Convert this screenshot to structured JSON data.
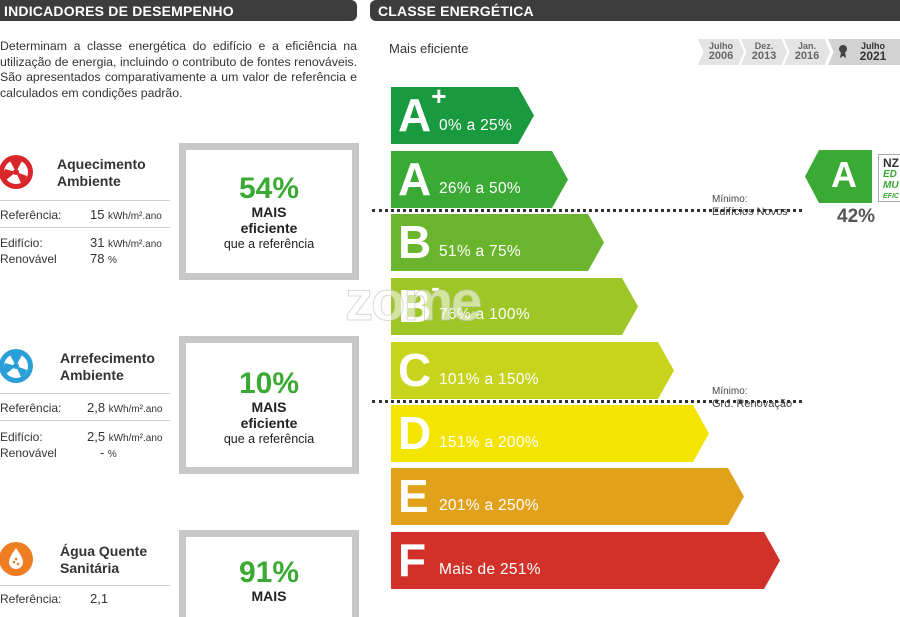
{
  "left_header": "INDICADORES DE DESEMPENHO",
  "right_header": "CLASSE ENERGÉTICA",
  "intro": "Determinam a classe energética do edifício e a eficiência na utilização de energia, incluindo o contributo de fontes renováveis. São apresentados comparativamente a um valor de referência e calculados em condições padrão.",
  "indicators": [
    {
      "title_line1": "Aquecimento",
      "title_line2": "Ambiente",
      "ref_label": "Referência:",
      "ref_value": "15",
      "ref_unit": "kWh/m².ano",
      "bld_label": "Edifício:",
      "bld_value": "31",
      "bld_unit": "kWh/m².ano",
      "ren_label": "Renovável",
      "ren_value": "78",
      "ren_unit": "%",
      "pct": "54%",
      "mais": "MAIS",
      "efic": "eficiente",
      "ref_text": "que a referência",
      "icon": "heating-fan-icon"
    },
    {
      "title_line1": "Arrefecimento",
      "title_line2": "Ambiente",
      "ref_label": "Referência:",
      "ref_value": "2,8",
      "ref_unit": "kWh/m².ano",
      "bld_label": "Edifício:",
      "bld_value": "2,5",
      "bld_unit": "kWh/m².ano",
      "ren_label": "Renovável",
      "ren_value": "-",
      "ren_unit": "%",
      "pct": "10%",
      "mais": "MAIS",
      "efic": "eficiente",
      "ref_text": "que a referência",
      "icon": "cooling-fan-icon"
    },
    {
      "title_line1": "Água Quente",
      "title_line2": "Sanitária",
      "ref_label": "Referência:",
      "ref_value": "2,1",
      "pct": "91%",
      "mais": "MAIS",
      "icon": "hot-water-icon"
    }
  ],
  "mais_eficiente": "Mais eficiente",
  "tabs": [
    {
      "month": "Julho",
      "year": "2006"
    },
    {
      "month": "Dez.",
      "year": "2013"
    },
    {
      "month": "Jan.",
      "year": "2016"
    },
    {
      "month": "Julho",
      "year": "2021"
    }
  ],
  "classes": [
    {
      "letter": "A",
      "sup": "+",
      "range": "0% a 25%",
      "color": "#1a9a3f"
    },
    {
      "letter": "A",
      "sup": "",
      "range": "26% a 50%",
      "color": "#3aaa35"
    },
    {
      "letter": "B",
      "sup": "",
      "range": "51% a 75%",
      "color": "#6ab52d"
    },
    {
      "letter": "B",
      "sup": "-",
      "range": "76% a 100%",
      "color": "#9ec626"
    },
    {
      "letter": "C",
      "sup": "",
      "range": "101% a 150%",
      "color": "#c8d41c"
    },
    {
      "letter": "D",
      "sup": "",
      "range": "151% a 200%",
      "color": "#f3e500"
    },
    {
      "letter": "E",
      "sup": "",
      "range": "201% a 250%",
      "color": "#e2a11b"
    },
    {
      "letter": "F",
      "sup": "",
      "range": "Mais de 251%",
      "color": "#d2312a"
    }
  ],
  "minimum_new": {
    "line1": "Mínimo:",
    "line2": "Edifícios Novos"
  },
  "minimum_renov": {
    "line1": "Mínimo:",
    "line2": "Grd. Renovação"
  },
  "current_class": "A",
  "current_pct": "42%",
  "nzeb": {
    "l1": "NZ",
    "l2": "ED",
    "l3": "MU",
    "l4": "EFIC"
  },
  "watermark": "zome"
}
